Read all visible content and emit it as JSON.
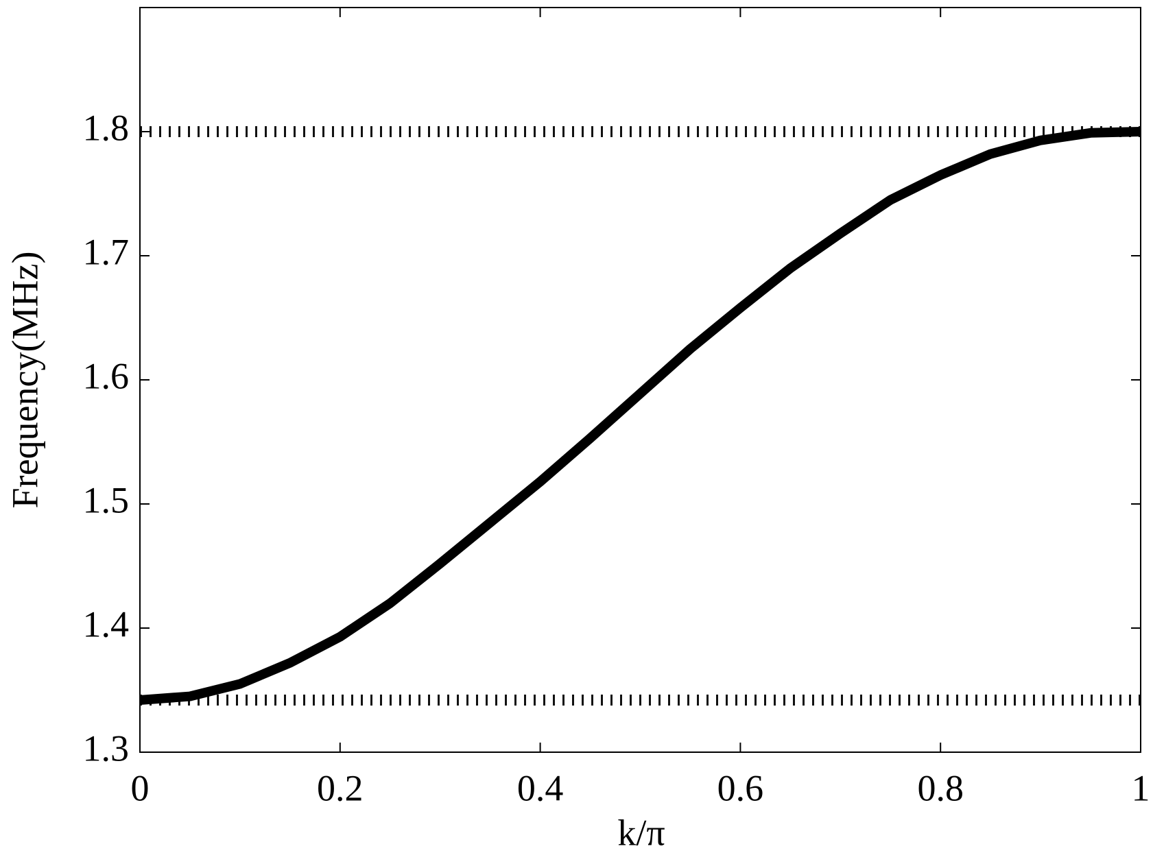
{
  "chart_data": {
    "type": "line",
    "xlabel": "k/π",
    "ylabel": "Frequency(MHz)",
    "x": [
      0,
      0.05,
      0.1,
      0.15,
      0.2,
      0.25,
      0.3,
      0.35,
      0.4,
      0.45,
      0.5,
      0.55,
      0.6,
      0.65,
      0.7,
      0.75,
      0.8,
      0.85,
      0.9,
      0.95,
      1.0
    ],
    "values": [
      1.342,
      1.345,
      1.355,
      1.372,
      1.393,
      1.42,
      1.452,
      1.485,
      1.518,
      1.553,
      1.589,
      1.625,
      1.658,
      1.69,
      1.718,
      1.745,
      1.765,
      1.782,
      1.793,
      1.799,
      1.8
    ],
    "color": "#000000",
    "hlines": [
      1.8,
      1.342
    ],
    "xlim": [
      0,
      1
    ],
    "xticks": [
      0,
      0.2,
      0.4,
      0.6,
      0.8,
      1
    ],
    "ylim": [
      1.3,
      1.9
    ],
    "yticks": [
      1.3,
      1.4,
      1.5,
      1.6,
      1.7,
      1.8
    ],
    "grid": false
  }
}
